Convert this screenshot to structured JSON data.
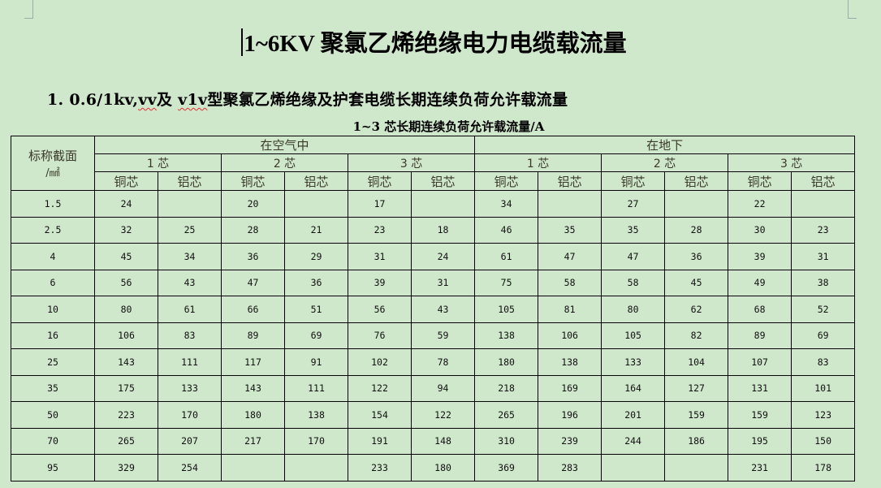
{
  "title": "1~6KV 聚氯乙烯绝缘电力电缆载流量",
  "section": {
    "prefix": "1.  0.6/1kv,",
    "vv": "vv",
    "mid": "及",
    "vlv": "v1v",
    "suffix": "型聚氯乙烯绝缘及护套电缆长期连续负荷允许载流量"
  },
  "caption": "1~3 芯长期连续负荷允许载流量/A",
  "table": {
    "corner_header": "标称截面",
    "corner_unit": "/㎟",
    "groups": [
      "在空气中",
      "在地下"
    ],
    "cores": [
      "1 芯",
      "2 芯",
      "3 芯",
      "1 芯",
      "2 芯",
      "3 芯"
    ],
    "materials": [
      "铜芯",
      "铝芯",
      "铜芯",
      "铝芯",
      "铜芯",
      "铝芯",
      "铜芯",
      "铝芯",
      "铜芯",
      "铝芯",
      "铜芯",
      "铝芯"
    ],
    "rows": [
      [
        "1.5",
        "24",
        "",
        "20",
        "",
        "17",
        "",
        "34",
        "",
        "27",
        "",
        "22",
        ""
      ],
      [
        "2.5",
        "32",
        "25",
        "28",
        "21",
        "23",
        "18",
        "46",
        "35",
        "35",
        "28",
        "30",
        "23"
      ],
      [
        "4",
        "45",
        "34",
        "36",
        "29",
        "31",
        "24",
        "61",
        "47",
        "47",
        "36",
        "39",
        "31"
      ],
      [
        "6",
        "56",
        "43",
        "47",
        "36",
        "39",
        "31",
        "75",
        "58",
        "58",
        "45",
        "49",
        "38"
      ],
      [
        "10",
        "80",
        "61",
        "66",
        "51",
        "56",
        "43",
        "105",
        "81",
        "80",
        "62",
        "68",
        "52"
      ],
      [
        "16",
        "106",
        "83",
        "89",
        "69",
        "76",
        "59",
        "138",
        "106",
        "105",
        "82",
        "89",
        "69"
      ],
      [
        "25",
        "143",
        "111",
        "117",
        "91",
        "102",
        "78",
        "180",
        "138",
        "133",
        "104",
        "107",
        "83"
      ],
      [
        "35",
        "175",
        "133",
        "143",
        "111",
        "122",
        "94",
        "218",
        "169",
        "164",
        "127",
        "131",
        "101"
      ],
      [
        "50",
        "223",
        "170",
        "180",
        "138",
        "154",
        "122",
        "265",
        "196",
        "201",
        "159",
        "159",
        "123"
      ],
      [
        "70",
        "265",
        "207",
        "217",
        "170",
        "191",
        "148",
        "310",
        "239",
        "244",
        "186",
        "195",
        "150"
      ],
      [
        "95",
        "329",
        "254",
        "",
        "",
        "233",
        "180",
        "369",
        "283",
        "",
        "",
        "231",
        "178"
      ]
    ]
  }
}
